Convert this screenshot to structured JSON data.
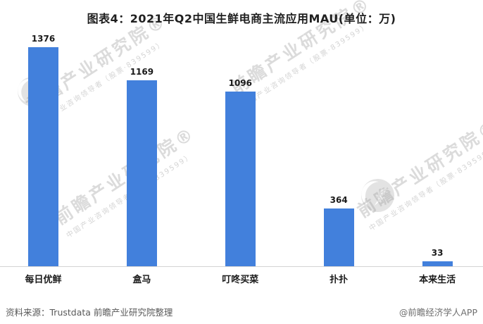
{
  "chart_data": {
    "type": "bar",
    "title": "图表4：2021年Q2中国生鲜电商主流应用MAU(单位：万)",
    "categories": [
      "每日优鲜",
      "盒马",
      "叮咚买菜",
      "扑扑",
      "本来生活"
    ],
    "values": [
      1376,
      1169,
      1096,
      364,
      33
    ],
    "unit": "万",
    "ylabel": "MAU",
    "ylim": [
      0,
      1400
    ],
    "grid": false,
    "legend": "none",
    "value_labels_shown": true,
    "bar_color": "#4280dc",
    "axis_line_color": "#d4d4d4",
    "label_color": "#1a1a1a"
  },
  "footer": {
    "source_label": "资料来源：Trustdata 前瞻产业研究院整理",
    "credit_label": "@前瞻经济学人APP",
    "source_color": "#595959",
    "credit_color": "#6e6e6e"
  },
  "watermark": {
    "brand_text": "前瞻产业研究院®",
    "sub_text": "中国产业咨询领导者（股票·839599）",
    "logo_name": "qianzhan-eye-logo"
  }
}
